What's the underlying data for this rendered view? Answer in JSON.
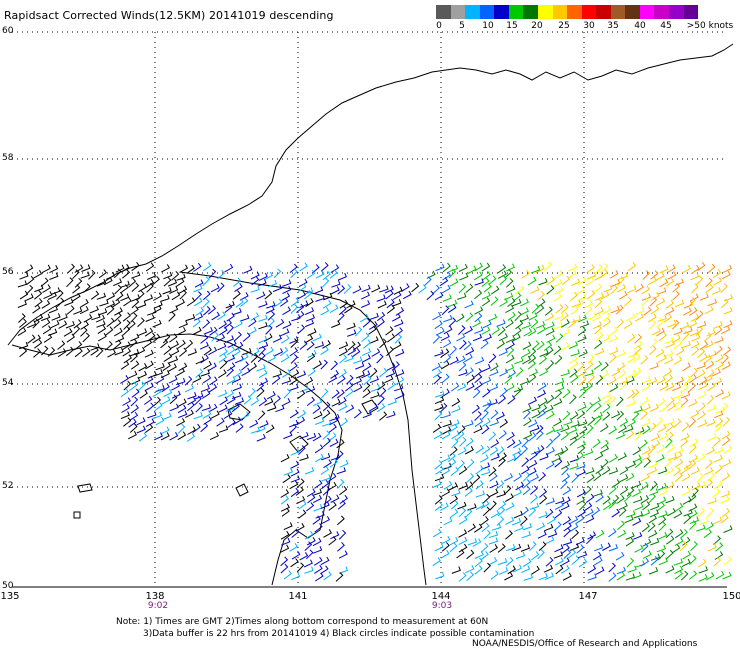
{
  "title": "Rapidsact Corrected Winds(12.5KM) 20141019 descending",
  "colorbar": {
    "colors": [
      "#5a5a5a",
      "#a0a0a0",
      "#00b4ff",
      "#0064ff",
      "#0000c8",
      "#00c800",
      "#007800",
      "#ffff00",
      "#ffc800",
      "#ff6400",
      "#ff0000",
      "#c80000",
      "#a05a28",
      "#643214",
      "#ff00ff",
      "#c800c8",
      "#9600c8",
      "#640096"
    ],
    "labels": [
      "0",
      "5",
      "10",
      "15",
      "20",
      "25",
      "30",
      "35",
      "40",
      "45",
      ">50 knots"
    ]
  },
  "axes": {
    "lat_labels": [
      "60",
      "58",
      "56",
      "54",
      "52",
      "50"
    ],
    "lon_labels": [
      "135",
      "138",
      "141",
      "144",
      "147",
      "150"
    ]
  },
  "pass_times": [
    "9:02",
    "9:03"
  ],
  "notes": {
    "line1": "Note: 1) Times are GMT 2)Times along bottom correspond to measurement at 60N",
    "line2": "3)Data buffer is 22 hrs from 20141019 4) Black circles indicate possible contamination",
    "line3": "NOAA/NESDIS/Office of Research and Applications"
  }
}
